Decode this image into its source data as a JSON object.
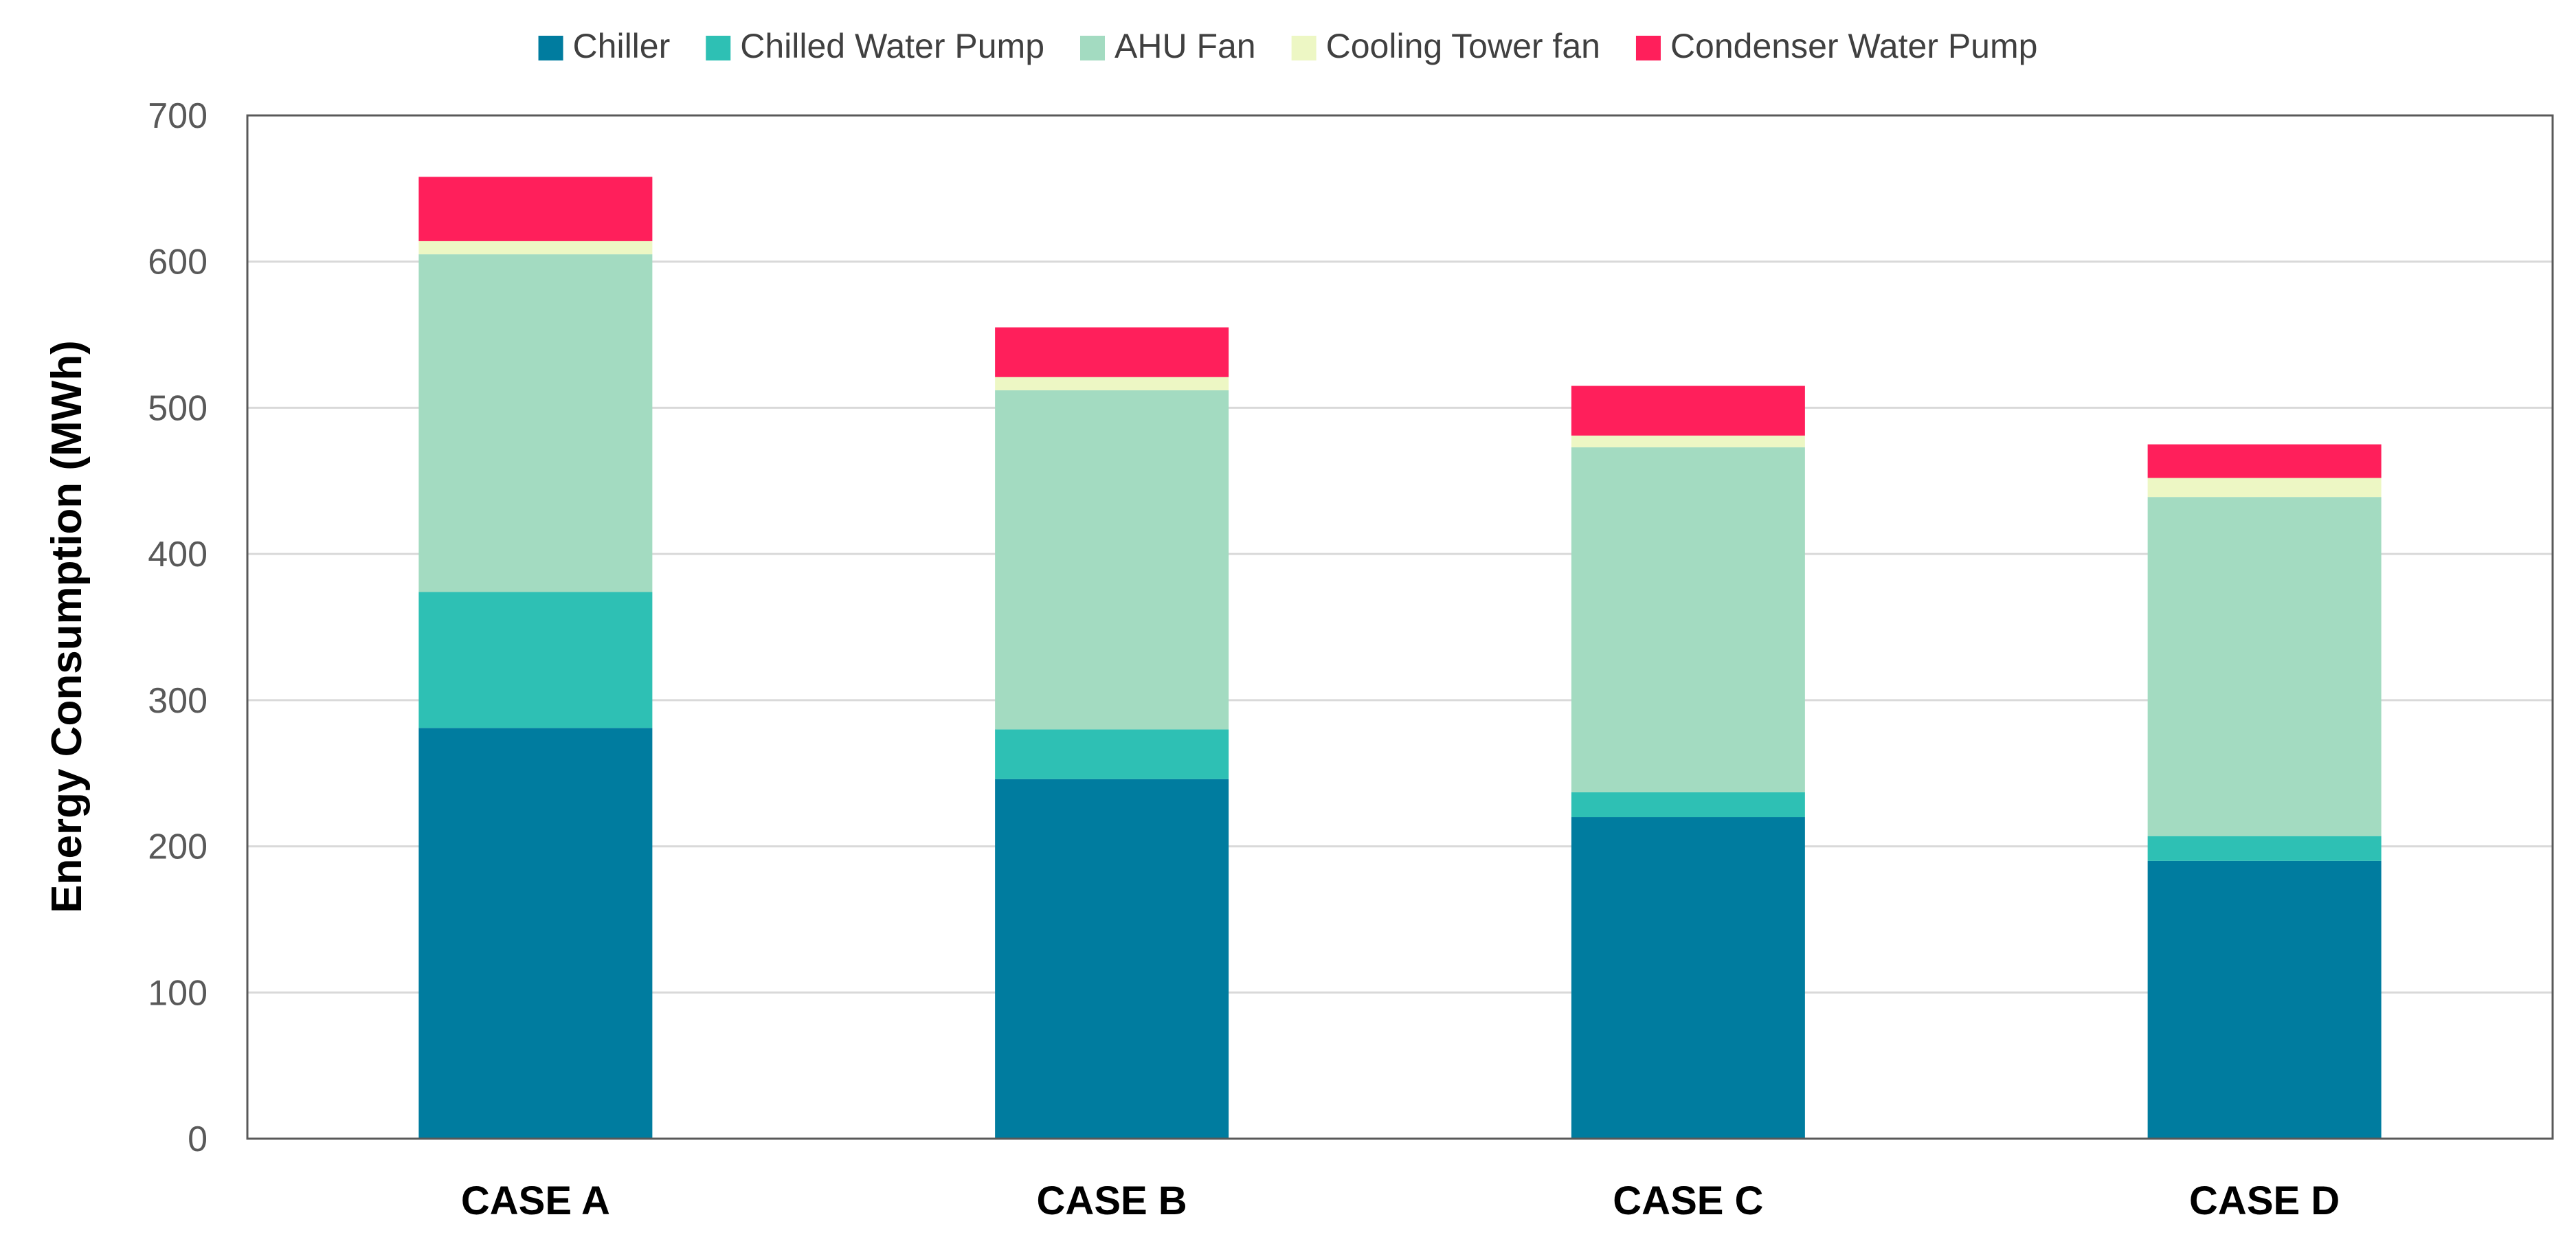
{
  "chart_data": {
    "type": "bar",
    "stacked": true,
    "title": "",
    "xlabel": "",
    "ylabel": "Energy Consumption (MWh)",
    "ylim": [
      0,
      700
    ],
    "yticks": [
      0,
      100,
      200,
      300,
      400,
      500,
      600,
      700
    ],
    "grid": true,
    "legend_position": "top",
    "categories": [
      "CASE A",
      "CASE B",
      "CASE C",
      "CASE D"
    ],
    "series": [
      {
        "name": "Chiller",
        "color": "#007C9F",
        "values": [
          281,
          246,
          220,
          190
        ]
      },
      {
        "name": "Chilled Water Pump",
        "color": "#2EC0B4",
        "values": [
          93,
          34,
          17,
          17
        ]
      },
      {
        "name": "AHU Fan",
        "color": "#A3DBC1",
        "values": [
          231,
          232,
          236,
          232
        ]
      },
      {
        "name": "Cooling Tower fan",
        "color": "#EDF7C4",
        "values": [
          9,
          9,
          8,
          13
        ]
      },
      {
        "name": "Condenser Water Pump",
        "color": "#FF1F5B",
        "values": [
          44,
          34,
          34,
          23
        ]
      }
    ]
  }
}
